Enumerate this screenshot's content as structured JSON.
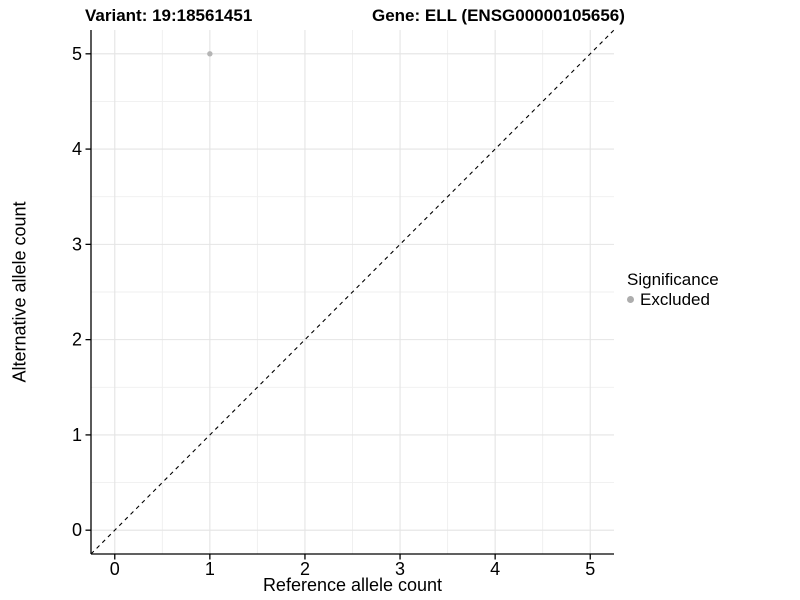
{
  "chart_data": {
    "type": "scatter",
    "title_left": "Variant: 19:18561451",
    "title_right": "Gene: ELL (ENSG00000105656)",
    "xlabel": "Reference allele count",
    "ylabel": "Alternative allele count",
    "xlim": [
      -0.25,
      5.25
    ],
    "ylim": [
      -0.25,
      5.25
    ],
    "x_ticks": [
      0,
      1,
      2,
      3,
      4,
      5
    ],
    "y_ticks": [
      0,
      1,
      2,
      3,
      4,
      5
    ],
    "minor_grid_step": 0.5,
    "grid": true,
    "legend_position": "right",
    "identity_line": {
      "type": "dashed",
      "from": [
        -0.25,
        -0.25
      ],
      "to": [
        5.25,
        5.25
      ],
      "color": "#000000"
    },
    "series": [
      {
        "name": "Excluded",
        "color": "#b5b5b5",
        "points": [
          {
            "x": 1,
            "y": 5
          }
        ]
      }
    ],
    "legend": {
      "title": "Significance",
      "items": [
        {
          "label": "Excluded",
          "color": "#adadad"
        }
      ]
    }
  },
  "colors": {
    "background": "#ffffff",
    "grid_major": "#e4e4e4",
    "grid_minor": "#efefef",
    "axis_line": "#000000",
    "tick_mark": "#000000",
    "text": "#000000",
    "point": "#b5b5b5"
  }
}
